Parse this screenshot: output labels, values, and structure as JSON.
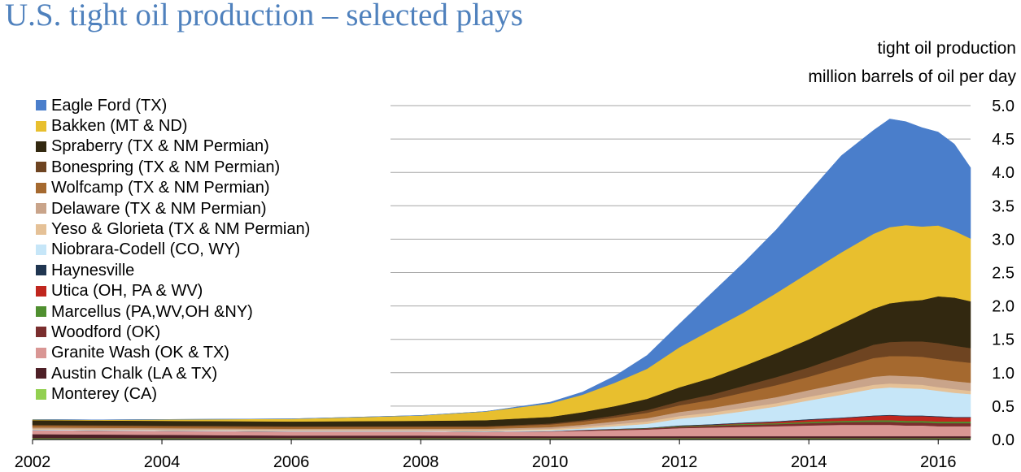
{
  "title": "U.S. tight oil production – selected plays",
  "ylabel_line1": "tight oil production",
  "ylabel_line2": "million barrels of oil per day",
  "chart_data": {
    "type": "area",
    "stacked": true,
    "title": "U.S. tight oil production – selected plays",
    "ylabel": "tight oil production, million barrels of oil per day",
    "xlabel": "",
    "xlim": [
      2002,
      2016.5
    ],
    "ylim": [
      0,
      5
    ],
    "grid": true,
    "legend_position": "left",
    "x_ticks": [
      "2002",
      "2004",
      "2006",
      "2008",
      "2010",
      "2012",
      "2014",
      "2016"
    ],
    "y_ticks": [
      "0.0",
      "0.5",
      "1.0",
      "1.5",
      "2.0",
      "2.5",
      "3.0",
      "3.5",
      "4.0",
      "4.5",
      "5.0"
    ],
    "x": [
      2002,
      2003,
      2004,
      2005,
      2006,
      2007,
      2008,
      2009,
      2010,
      2010.5,
      2011,
      2011.5,
      2012,
      2012.5,
      2013,
      2013.5,
      2014,
      2014.5,
      2015,
      2015.25,
      2015.5,
      2015.75,
      2016,
      2016.25,
      2016.5
    ],
    "series": [
      {
        "name": "Monterey (CA)",
        "color": "#92d050",
        "values": [
          0.02,
          0.02,
          0.02,
          0.02,
          0.02,
          0.02,
          0.02,
          0.02,
          0.02,
          0.02,
          0.02,
          0.02,
          0.02,
          0.02,
          0.02,
          0.02,
          0.02,
          0.02,
          0.02,
          0.02,
          0.02,
          0.02,
          0.02,
          0.02,
          0.02
        ]
      },
      {
        "name": "Austin Chalk (LA & TX)",
        "color": "#4d1f26",
        "values": [
          0.06,
          0.055,
          0.05,
          0.045,
          0.04,
          0.04,
          0.04,
          0.035,
          0.03,
          0.03,
          0.03,
          0.03,
          0.03,
          0.03,
          0.03,
          0.03,
          0.03,
          0.03,
          0.03,
          0.03,
          0.03,
          0.03,
          0.03,
          0.03,
          0.03
        ]
      },
      {
        "name": "Granite Wash (OK & TX)",
        "color": "#d99694",
        "values": [
          0.06,
          0.06,
          0.06,
          0.06,
          0.06,
          0.06,
          0.06,
          0.06,
          0.07,
          0.08,
          0.09,
          0.1,
          0.12,
          0.13,
          0.14,
          0.15,
          0.16,
          0.17,
          0.17,
          0.17,
          0.16,
          0.16,
          0.15,
          0.15,
          0.15
        ]
      },
      {
        "name": "Woodford (OK)",
        "color": "#7a2e2e",
        "values": [
          0.0,
          0.0,
          0.0,
          0.0,
          0.0,
          0.0,
          0.0,
          0.0,
          0.005,
          0.01,
          0.01,
          0.015,
          0.02,
          0.025,
          0.03,
          0.03,
          0.035,
          0.04,
          0.045,
          0.045,
          0.045,
          0.045,
          0.045,
          0.045,
          0.045
        ]
      },
      {
        "name": "Marcellus (PA,WV,OH &NY)",
        "color": "#4f8f2f",
        "values": [
          0.0,
          0.0,
          0.0,
          0.0,
          0.0,
          0.0,
          0.0,
          0.0,
          0.0,
          0.0,
          0.005,
          0.005,
          0.01,
          0.01,
          0.015,
          0.015,
          0.02,
          0.02,
          0.025,
          0.025,
          0.025,
          0.025,
          0.025,
          0.025,
          0.025
        ]
      },
      {
        "name": "Utica (OH, PA & WV)",
        "color": "#c0261e",
        "values": [
          0.0,
          0.0,
          0.0,
          0.0,
          0.0,
          0.0,
          0.0,
          0.0,
          0.0,
          0.0,
          0.0,
          0.0,
          0.002,
          0.005,
          0.01,
          0.02,
          0.03,
          0.04,
          0.06,
          0.07,
          0.07,
          0.07,
          0.07,
          0.06,
          0.06
        ]
      },
      {
        "name": "Haynesville",
        "color": "#1f3550",
        "values": [
          0.0,
          0.0,
          0.0,
          0.0,
          0.0,
          0.0,
          0.0,
          0.0,
          0.0,
          0.005,
          0.005,
          0.005,
          0.01,
          0.01,
          0.01,
          0.01,
          0.01,
          0.01,
          0.01,
          0.01,
          0.01,
          0.01,
          0.01,
          0.01,
          0.01
        ]
      },
      {
        "name": "Niobrara-Codell (CO, WY)",
        "color": "#c6e6f8",
        "values": [
          0.01,
          0.01,
          0.01,
          0.01,
          0.01,
          0.01,
          0.01,
          0.01,
          0.015,
          0.02,
          0.04,
          0.06,
          0.1,
          0.13,
          0.17,
          0.22,
          0.28,
          0.34,
          0.4,
          0.41,
          0.41,
          0.4,
          0.38,
          0.36,
          0.34
        ]
      },
      {
        "name": "Yeso & Glorieta (TX & NM Permian)",
        "color": "#e5c197",
        "values": [
          0.01,
          0.01,
          0.01,
          0.01,
          0.01,
          0.01,
          0.01,
          0.015,
          0.02,
          0.025,
          0.03,
          0.035,
          0.04,
          0.045,
          0.05,
          0.05,
          0.055,
          0.06,
          0.06,
          0.06,
          0.06,
          0.06,
          0.055,
          0.055,
          0.05
        ]
      },
      {
        "name": "Delaware (TX & NM Permian)",
        "color": "#c9a48a",
        "values": [
          0.02,
          0.02,
          0.02,
          0.02,
          0.02,
          0.02,
          0.02,
          0.02,
          0.025,
          0.03,
          0.04,
          0.05,
          0.06,
          0.07,
          0.08,
          0.09,
          0.1,
          0.11,
          0.12,
          0.12,
          0.12,
          0.12,
          0.12,
          0.12,
          0.12
        ]
      },
      {
        "name": "Wolfcamp (TX & NM Permian)",
        "color": "#a5692f",
        "values": [
          0.03,
          0.03,
          0.03,
          0.03,
          0.03,
          0.03,
          0.03,
          0.03,
          0.04,
          0.05,
          0.06,
          0.08,
          0.1,
          0.12,
          0.15,
          0.18,
          0.2,
          0.24,
          0.28,
          0.29,
          0.3,
          0.3,
          0.3,
          0.3,
          0.3
        ]
      },
      {
        "name": "Bonespring (TX & NM Permian)",
        "color": "#6e4421",
        "values": [
          0.01,
          0.01,
          0.01,
          0.01,
          0.01,
          0.01,
          0.01,
          0.01,
          0.015,
          0.02,
          0.03,
          0.04,
          0.06,
          0.08,
          0.1,
          0.12,
          0.14,
          0.17,
          0.2,
          0.21,
          0.22,
          0.23,
          0.24,
          0.23,
          0.22
        ]
      },
      {
        "name": "Spraberry (TX & NM Permian)",
        "color": "#322810",
        "values": [
          0.07,
          0.07,
          0.07,
          0.07,
          0.07,
          0.075,
          0.08,
          0.09,
          0.1,
          0.12,
          0.14,
          0.17,
          0.21,
          0.25,
          0.3,
          0.36,
          0.42,
          0.48,
          0.54,
          0.58,
          0.6,
          0.62,
          0.7,
          0.72,
          0.7
        ]
      },
      {
        "name": "Bakken (MT & ND)",
        "color": "#e8bf2e",
        "values": [
          0.01,
          0.01,
          0.02,
          0.03,
          0.04,
          0.06,
          0.08,
          0.13,
          0.2,
          0.26,
          0.35,
          0.45,
          0.6,
          0.72,
          0.8,
          0.9,
          1.0,
          1.07,
          1.12,
          1.14,
          1.14,
          1.1,
          1.06,
          1.0,
          0.94
        ]
      },
      {
        "name": "Eagle Ford (TX)",
        "color": "#4a7ecb",
        "values": [
          0.0,
          0.0,
          0.0,
          0.0,
          0.0,
          0.0,
          0.0,
          0.0,
          0.02,
          0.04,
          0.1,
          0.2,
          0.35,
          0.55,
          0.75,
          0.95,
          1.2,
          1.45,
          1.55,
          1.62,
          1.55,
          1.48,
          1.4,
          1.3,
          1.06
        ]
      }
    ]
  }
}
